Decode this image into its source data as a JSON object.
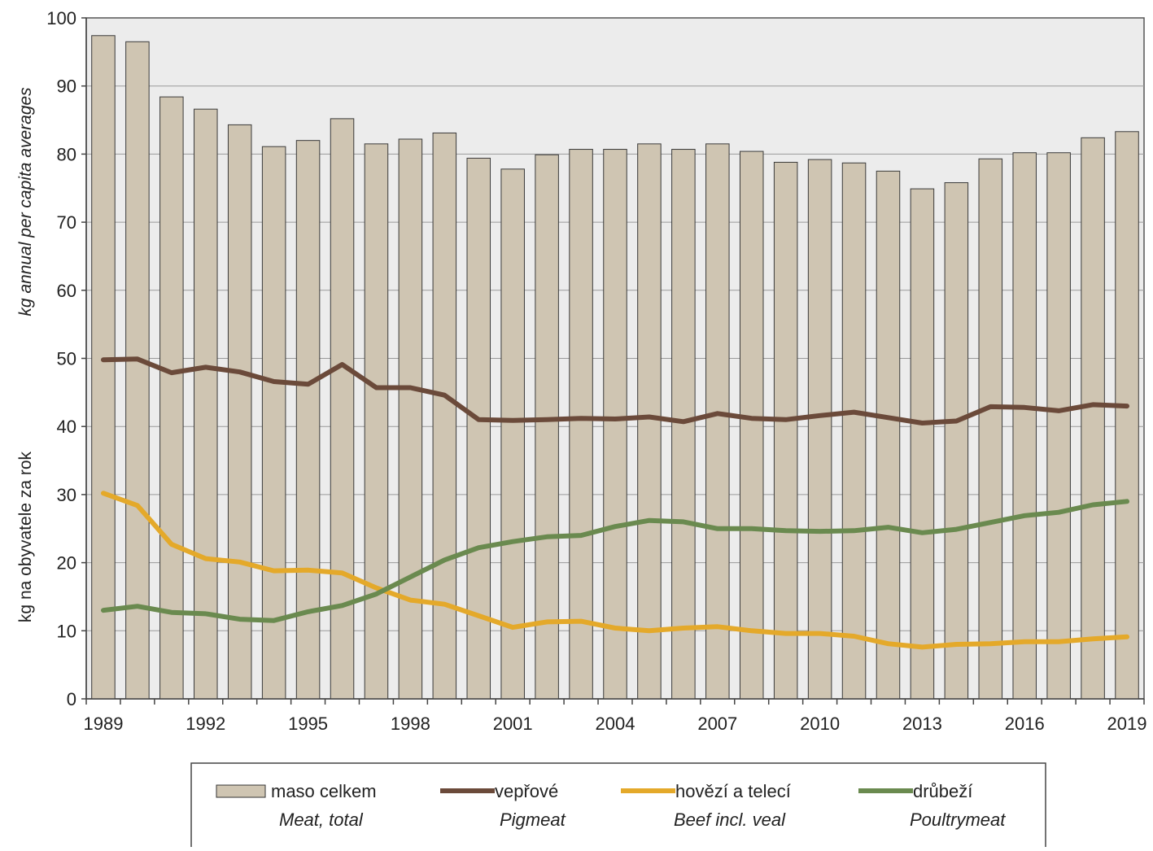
{
  "chart_data": {
    "type": "bar",
    "years": [
      1989,
      1990,
      1991,
      1992,
      1993,
      1994,
      1995,
      1996,
      1997,
      1998,
      1999,
      2000,
      2001,
      2002,
      2003,
      2004,
      2005,
      2006,
      2007,
      2008,
      2009,
      2010,
      2011,
      2012,
      2013,
      2014,
      2015,
      2016,
      2017,
      2018,
      2019
    ],
    "x_tick_labels": [
      "1989",
      "1992",
      "1995",
      "1998",
      "2001",
      "2004",
      "2007",
      "2010",
      "2013",
      "2016",
      "2019"
    ],
    "y_ticks": [
      0,
      10,
      20,
      30,
      40,
      50,
      60,
      70,
      80,
      90,
      100
    ],
    "ylim": [
      0,
      100
    ],
    "ylabel_cz": "kg na obyvatele  za rok",
    "ylabel_en": "kg annual per capita averages",
    "grid": "horizontal lines above bars",
    "series": [
      {
        "name": "maso celkem",
        "name_en": "Meat, total",
        "kind": "bar",
        "color": "#cfc5b2",
        "values": [
          97.4,
          96.5,
          88.4,
          86.6,
          84.3,
          81.1,
          82.0,
          85.2,
          81.5,
          82.2,
          83.1,
          79.4,
          77.8,
          79.9,
          80.7,
          80.7,
          81.5,
          80.7,
          81.5,
          80.4,
          78.8,
          79.2,
          78.7,
          77.5,
          74.9,
          75.8,
          79.3,
          80.2,
          80.2,
          82.4,
          83.3
        ]
      },
      {
        "name": "vepřové",
        "name_en": "Pigmeat",
        "kind": "line",
        "color": "#6b4a3a",
        "values": [
          49.8,
          49.9,
          47.9,
          48.7,
          48.0,
          46.6,
          46.2,
          49.1,
          45.7,
          45.7,
          44.6,
          41.0,
          40.9,
          41.0,
          41.2,
          41.1,
          41.4,
          40.7,
          41.9,
          41.2,
          41.0,
          41.6,
          42.1,
          41.3,
          40.5,
          40.8,
          42.9,
          42.8,
          42.3,
          43.2,
          43.0
        ]
      },
      {
        "name": "hovězí a telecí",
        "name_en": "Beef incl. veal",
        "kind": "line",
        "color": "#e4a92a",
        "values": [
          30.2,
          28.4,
          22.7,
          20.6,
          20.1,
          18.8,
          18.9,
          18.5,
          16.3,
          14.5,
          13.9,
          12.2,
          10.5,
          11.3,
          11.4,
          10.4,
          10.0,
          10.4,
          10.6,
          10.0,
          9.6,
          9.6,
          9.2,
          8.1,
          7.6,
          8.0,
          8.1,
          8.4,
          8.4,
          8.8,
          9.1
        ]
      },
      {
        "name": "drůbeží",
        "name_en": "Poultrymeat",
        "kind": "line",
        "color": "#6a8a4f",
        "values": [
          13.0,
          13.6,
          12.7,
          12.5,
          11.7,
          11.5,
          12.8,
          13.7,
          15.4,
          17.9,
          20.4,
          22.2,
          23.1,
          23.8,
          24.0,
          25.3,
          26.2,
          26.0,
          25.0,
          25.0,
          24.7,
          24.6,
          24.7,
          25.2,
          24.4,
          24.9,
          25.9,
          26.9,
          27.4,
          28.5,
          29.0
        ]
      }
    ],
    "legend": {
      "placement": "bottom"
    }
  }
}
